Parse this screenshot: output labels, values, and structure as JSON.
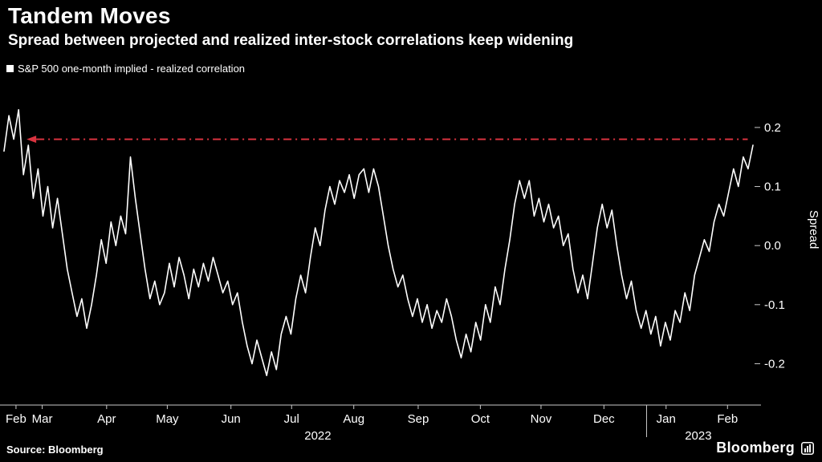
{
  "header": {
    "title": "Tandem Moves",
    "subtitle": "Spread between projected and realized inter-stock correlations keep widening"
  },
  "legend": {
    "label": "S&P 500 one-month implied - realized correlation"
  },
  "footer": {
    "source": "Source: Bloomberg",
    "brand": "Bloomberg"
  },
  "colors": {
    "background": "#000000",
    "line": "#ffffff",
    "reference": "#d9333f",
    "axis": "#c8c8c8",
    "text": "#ffffff"
  },
  "chart_data": {
    "type": "line",
    "title": "Tandem Moves",
    "subtitle": "Spread between projected and realized inter-stock correlations keep widening",
    "xlabel": "",
    "ylabel": "Spread",
    "x_range": [
      "Feb 2022",
      "Feb 2023"
    ],
    "ylim": [
      -0.27,
      0.28
    ],
    "grid": false,
    "legend_position": "top-left",
    "y_ticks": [
      {
        "v": 0.2,
        "label": "0.2"
      },
      {
        "v": 0.1,
        "label": "0.1"
      },
      {
        "v": 0.0,
        "label": "0.0"
      },
      {
        "v": -0.1,
        "label": "-0.1"
      },
      {
        "v": -0.2,
        "label": "-0.2"
      }
    ],
    "x_months": [
      {
        "label": "Feb",
        "pos": 0.016
      },
      {
        "label": "Mar",
        "pos": 0.051
      },
      {
        "label": "Apr",
        "pos": 0.137
      },
      {
        "label": "May",
        "pos": 0.218
      },
      {
        "label": "Jun",
        "pos": 0.303
      },
      {
        "label": "Jul",
        "pos": 0.384
      },
      {
        "label": "Aug",
        "pos": 0.467
      },
      {
        "label": "Sep",
        "pos": 0.553
      },
      {
        "label": "Oct",
        "pos": 0.636
      },
      {
        "label": "Nov",
        "pos": 0.717
      },
      {
        "label": "Dec",
        "pos": 0.801
      },
      {
        "label": "Jan",
        "pos": 0.884
      },
      {
        "label": "Feb",
        "pos": 0.966
      }
    ],
    "years": [
      {
        "label": "2022",
        "pos": 0.419
      },
      {
        "label": "2023",
        "pos": 0.927
      }
    ],
    "year_divider_pos": 0.858,
    "reference_line": {
      "value": 0.18,
      "color": "#d9333f",
      "style": "dash-dot",
      "arrow": "left",
      "from_pos": 0.043,
      "to_pos": 0.993
    },
    "series": [
      {
        "name": "S&P 500 one-month implied - realized correlation",
        "color": "#ffffff",
        "values": [
          0.16,
          0.22,
          0.18,
          0.23,
          0.12,
          0.17,
          0.08,
          0.13,
          0.05,
          0.1,
          0.03,
          0.08,
          0.02,
          -0.04,
          -0.08,
          -0.12,
          -0.09,
          -0.14,
          -0.1,
          -0.05,
          0.01,
          -0.03,
          0.04,
          0.0,
          0.05,
          0.02,
          0.15,
          0.08,
          0.02,
          -0.04,
          -0.09,
          -0.06,
          -0.1,
          -0.08,
          -0.03,
          -0.07,
          -0.02,
          -0.05,
          -0.09,
          -0.04,
          -0.07,
          -0.03,
          -0.06,
          -0.02,
          -0.05,
          -0.08,
          -0.06,
          -0.1,
          -0.08,
          -0.13,
          -0.17,
          -0.2,
          -0.16,
          -0.19,
          -0.22,
          -0.18,
          -0.21,
          -0.15,
          -0.12,
          -0.15,
          -0.09,
          -0.05,
          -0.08,
          -0.02,
          0.03,
          0.0,
          0.06,
          0.1,
          0.07,
          0.11,
          0.09,
          0.12,
          0.08,
          0.12,
          0.13,
          0.09,
          0.13,
          0.1,
          0.05,
          0.0,
          -0.04,
          -0.07,
          -0.05,
          -0.09,
          -0.12,
          -0.09,
          -0.13,
          -0.1,
          -0.14,
          -0.11,
          -0.13,
          -0.09,
          -0.12,
          -0.16,
          -0.19,
          -0.15,
          -0.18,
          -0.13,
          -0.16,
          -0.1,
          -0.13,
          -0.07,
          -0.1,
          -0.04,
          0.01,
          0.07,
          0.11,
          0.08,
          0.11,
          0.05,
          0.08,
          0.04,
          0.07,
          0.03,
          0.05,
          0.0,
          0.02,
          -0.04,
          -0.08,
          -0.05,
          -0.09,
          -0.03,
          0.03,
          0.07,
          0.03,
          0.06,
          0.0,
          -0.05,
          -0.09,
          -0.06,
          -0.11,
          -0.14,
          -0.11,
          -0.15,
          -0.12,
          -0.17,
          -0.13,
          -0.16,
          -0.11,
          -0.13,
          -0.08,
          -0.11,
          -0.05,
          -0.02,
          0.01,
          -0.01,
          0.04,
          0.07,
          0.05,
          0.09,
          0.13,
          0.1,
          0.15,
          0.13,
          0.17
        ]
      }
    ]
  }
}
